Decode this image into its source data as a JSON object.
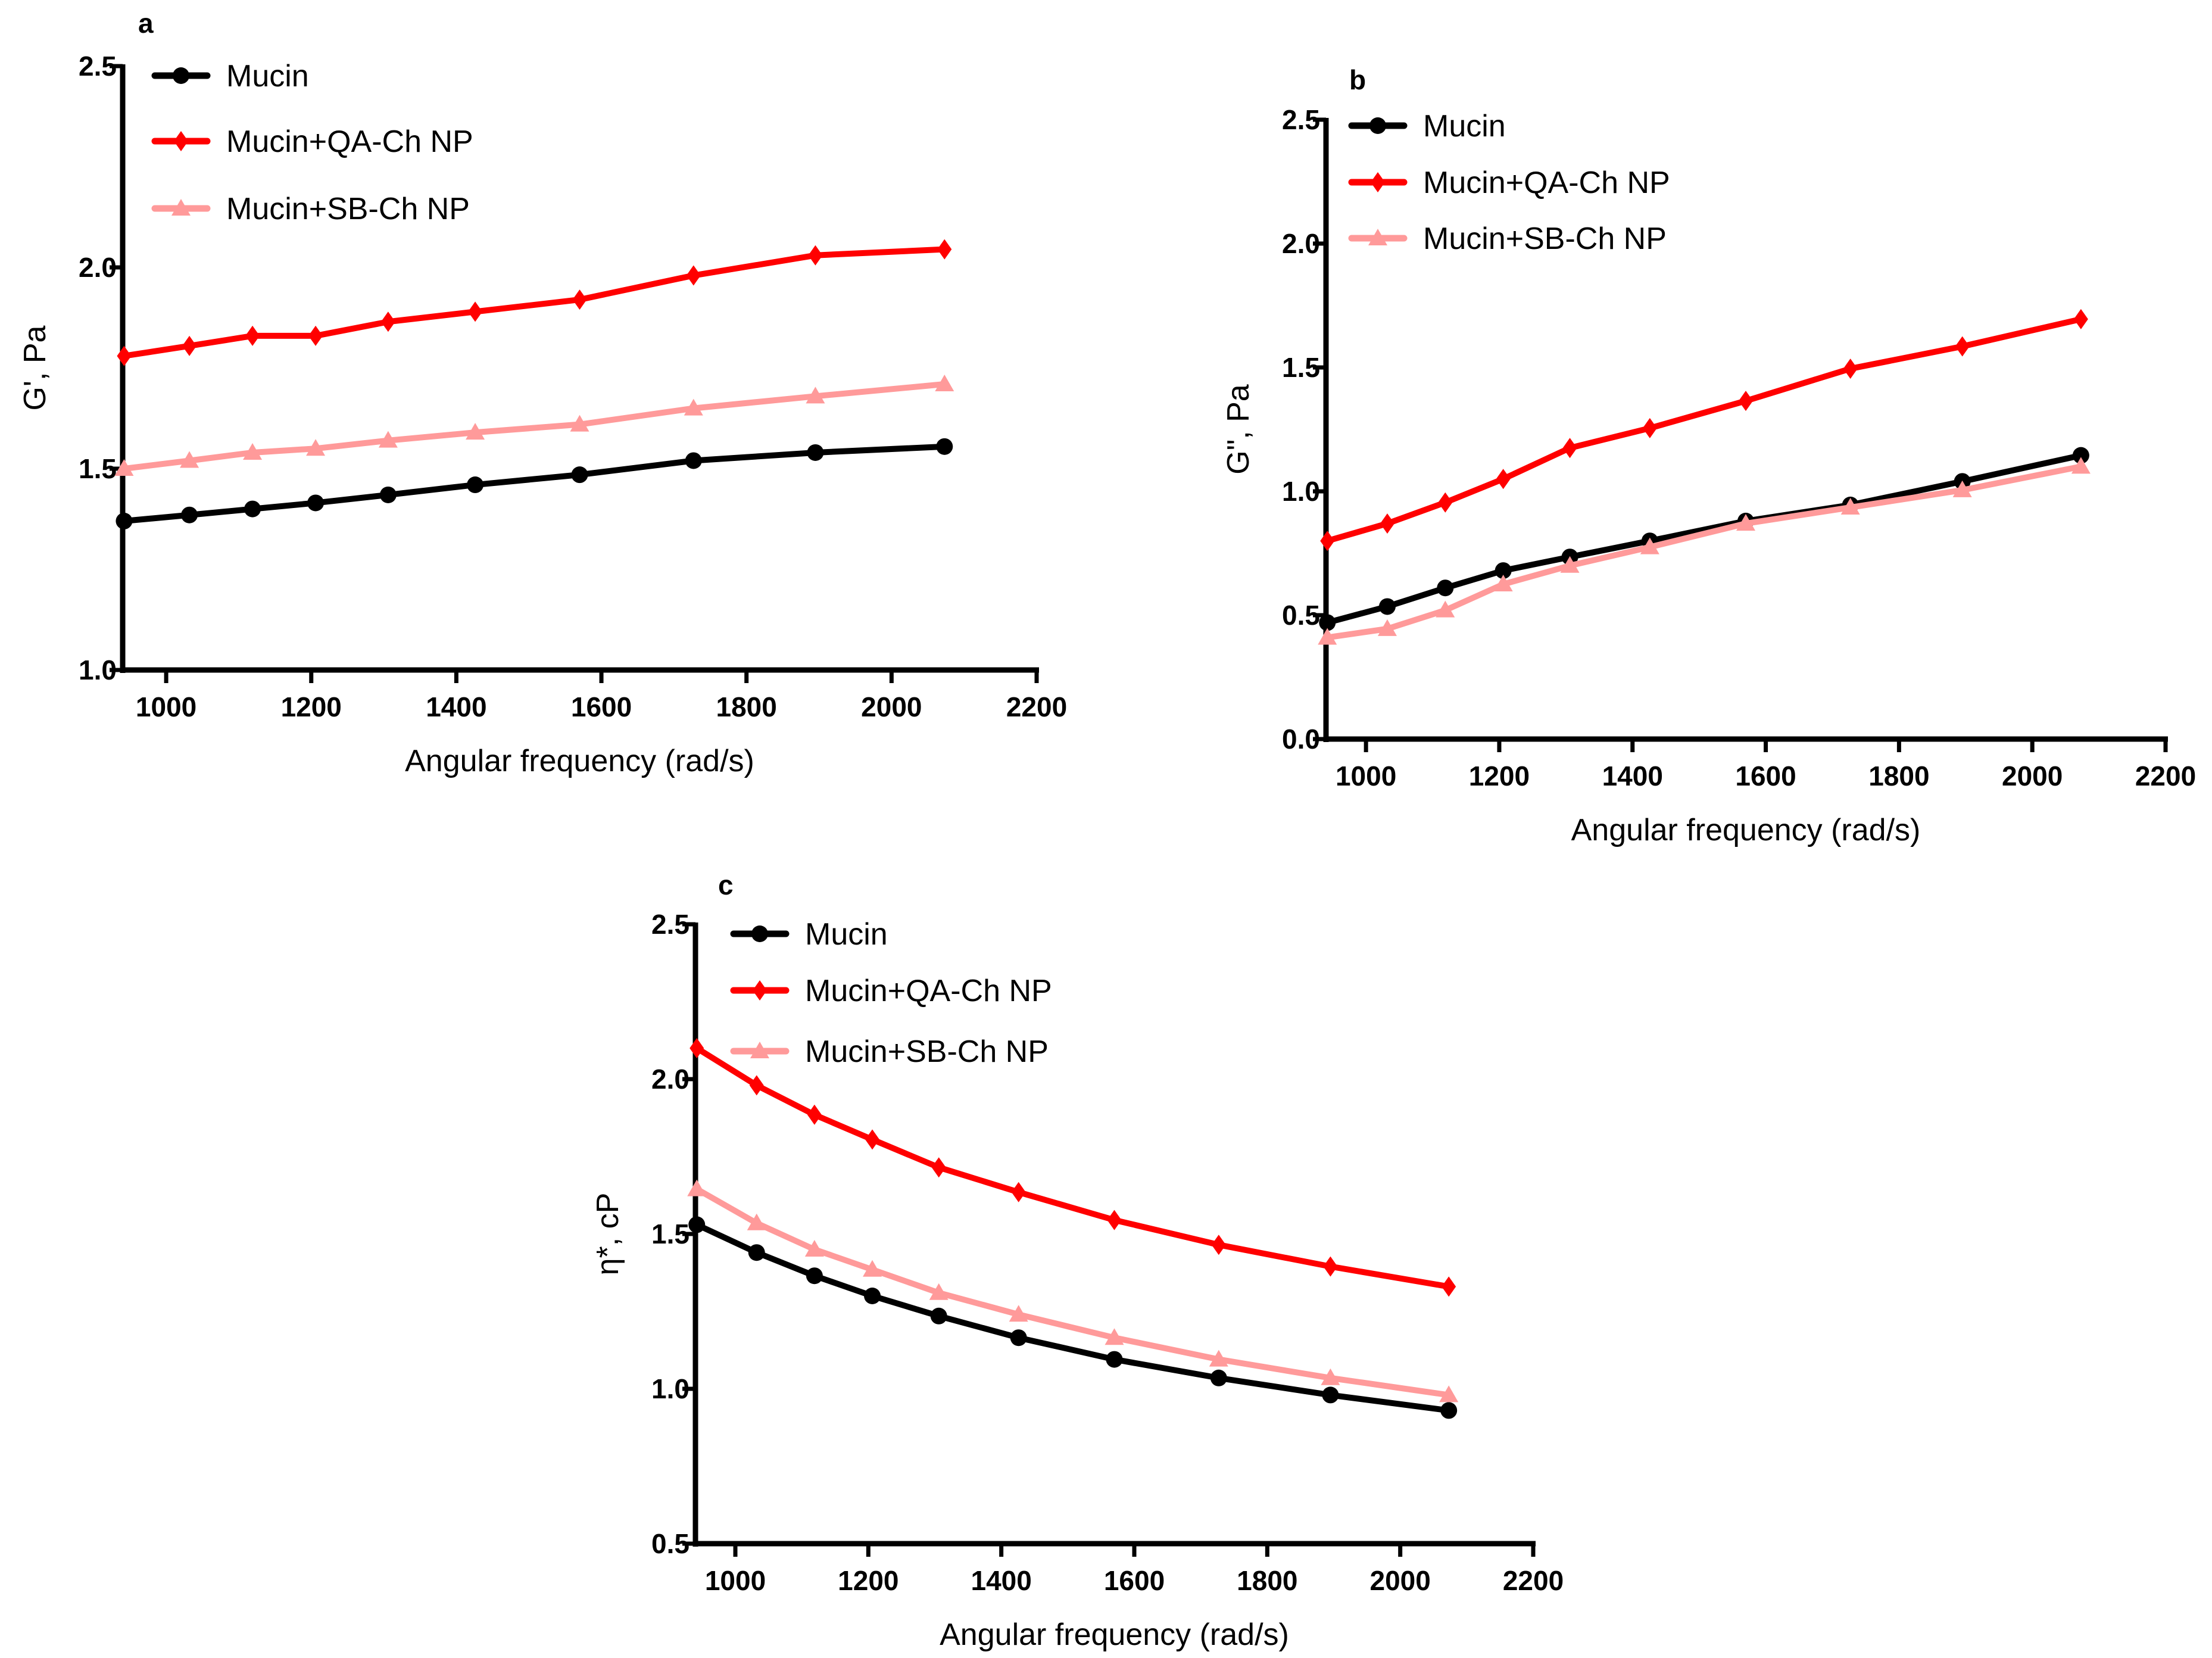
{
  "colors": {
    "mucin": "#000000",
    "qa": "#ff0000",
    "sb": "#ff9a9a"
  },
  "chart_data": [
    {
      "type": "line",
      "panel": "a",
      "xlabel": "Angular frequency (rad/s)",
      "ylabel": "G', Pa",
      "xlim": [
        940,
        2200
      ],
      "ylim": [
        1.0,
        2.5
      ],
      "xticks": [
        "1000",
        "1200",
        "1400",
        "1600",
        "1800",
        "2000",
        "2200"
      ],
      "yticks": [
        "1.0",
        "1.5",
        "2.0",
        "2.5"
      ],
      "legend_position": "top-left",
      "x": [
        942,
        1032,
        1119,
        1206,
        1306,
        1426,
        1570,
        1727,
        1895,
        2073
      ],
      "series": [
        {
          "name": "Mucin",
          "marker": "circle",
          "color_key": "mucin",
          "values": [
            1.37,
            1.385,
            1.4,
            1.415,
            1.435,
            1.46,
            1.485,
            1.52,
            1.54,
            1.555
          ]
        },
        {
          "name": "Mucin+QA-Ch NP",
          "marker": "diamond",
          "color_key": "qa",
          "values": [
            1.78,
            1.805,
            1.83,
            1.83,
            1.865,
            1.89,
            1.92,
            1.98,
            2.03,
            2.045
          ]
        },
        {
          "name": "Mucin+SB-Ch NP",
          "marker": "triangle",
          "color_key": "sb",
          "values": [
            1.5,
            1.52,
            1.54,
            1.55,
            1.57,
            1.59,
            1.61,
            1.65,
            1.68,
            1.71
          ]
        }
      ]
    },
    {
      "type": "line",
      "panel": "b",
      "xlabel": "Angular frequency (rad/s)",
      "ylabel": "G\", Pa",
      "xlim": [
        940,
        2200
      ],
      "ylim": [
        0.0,
        2.5
      ],
      "xticks": [
        "1000",
        "1200",
        "1400",
        "1600",
        "1800",
        "2000",
        "2200"
      ],
      "yticks": [
        "0.0",
        "0.5",
        "1.0",
        "1.5",
        "2.0",
        "2.5"
      ],
      "legend_position": "top-left",
      "x": [
        942,
        1032,
        1119,
        1206,
        1306,
        1426,
        1570,
        1727,
        1895,
        2073
      ],
      "series": [
        {
          "name": "Mucin",
          "marker": "circle",
          "color_key": "mucin",
          "values": [
            0.47,
            0.535,
            0.61,
            0.68,
            0.735,
            0.8,
            0.88,
            0.945,
            1.04,
            1.145
          ]
        },
        {
          "name": "Mucin+QA-Ch NP",
          "marker": "diamond",
          "color_key": "qa",
          "values": [
            0.8,
            0.87,
            0.955,
            1.05,
            1.175,
            1.255,
            1.365,
            1.495,
            1.585,
            1.695
          ]
        },
        {
          "name": "Mucin+SB-Ch NP",
          "marker": "triangle",
          "color_key": "sb",
          "values": [
            0.41,
            0.445,
            0.52,
            0.625,
            0.7,
            0.775,
            0.87,
            0.935,
            1.005,
            1.1
          ]
        }
      ]
    },
    {
      "type": "line",
      "panel": "c",
      "xlabel": "Angular frequency (rad/s)",
      "ylabel": "η*, cP",
      "xlim": [
        940,
        2200
      ],
      "ylim": [
        0.5,
        2.5
      ],
      "xticks": [
        "1000",
        "1200",
        "1400",
        "1600",
        "1800",
        "2000",
        "2200"
      ],
      "yticks": [
        "0.5",
        "1.0",
        "1.5",
        "2.0",
        "2.5"
      ],
      "legend_position": "top-left",
      "x": [
        942,
        1032,
        1119,
        1206,
        1306,
        1426,
        1570,
        1727,
        1895,
        2073
      ],
      "series": [
        {
          "name": "Mucin",
          "marker": "circle",
          "color_key": "mucin",
          "values": [
            1.53,
            1.44,
            1.365,
            1.3,
            1.235,
            1.165,
            1.095,
            1.035,
            0.98,
            0.93
          ]
        },
        {
          "name": "Mucin+QA-Ch NP",
          "marker": "diamond",
          "color_key": "qa",
          "values": [
            2.1,
            1.98,
            1.885,
            1.805,
            1.715,
            1.635,
            1.545,
            1.465,
            1.395,
            1.33
          ]
        },
        {
          "name": "Mucin+SB-Ch NP",
          "marker": "triangle",
          "color_key": "sb",
          "values": [
            1.645,
            1.535,
            1.45,
            1.385,
            1.31,
            1.24,
            1.165,
            1.095,
            1.035,
            0.98
          ]
        }
      ]
    }
  ]
}
